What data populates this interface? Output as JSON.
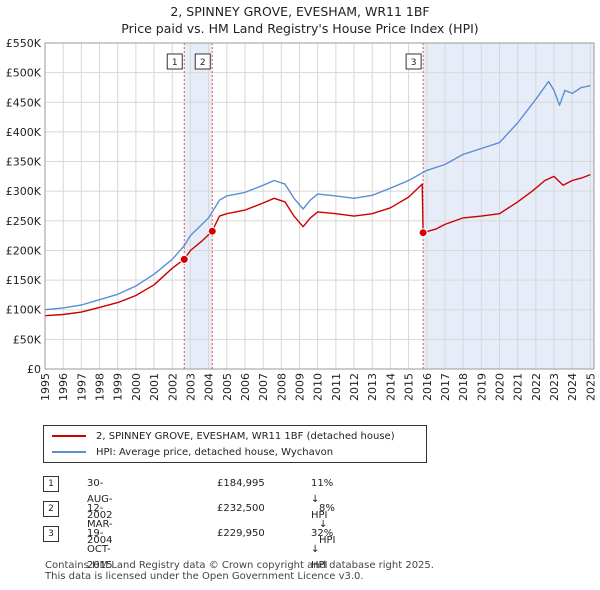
{
  "title": {
    "line1": "2, SPINNEY GROVE, EVESHAM, WR11 1BF",
    "line2": "Price paid vs. HM Land Registry's House Price Index (HPI)"
  },
  "chart_data": {
    "type": "line",
    "x_axis": {
      "range": [
        1995.0,
        2025.2
      ],
      "tick_labels": [
        "1995",
        "1996",
        "1997",
        "1998",
        "1999",
        "2000",
        "2001",
        "2002",
        "2003",
        "2004",
        "2005",
        "2006",
        "2007",
        "2008",
        "2009",
        "2010",
        "2011",
        "2012",
        "2013",
        "2014",
        "2015",
        "2016",
        "2017",
        "2018",
        "2019",
        "2020",
        "2021",
        "2022",
        "2023",
        "2024",
        "2025"
      ]
    },
    "y_axis": {
      "range": [
        0,
        550000
      ],
      "tick_labels": [
        "£0",
        "£50K",
        "£100K",
        "£150K",
        "£200K",
        "£250K",
        "£300K",
        "£350K",
        "£400K",
        "£450K",
        "£500K",
        "£550K"
      ]
    },
    "grid": true,
    "series": [
      {
        "name": "2, SPINNEY GROVE, EVESHAM, WR11 1BF (detached house)",
        "color": "#cc0000",
        "points": [
          [
            1995.0,
            90000
          ],
          [
            1996.0,
            92000
          ],
          [
            1997.0,
            96000
          ],
          [
            1998.0,
            104000
          ],
          [
            1999.0,
            112000
          ],
          [
            2000.0,
            124000
          ],
          [
            2001.0,
            142000
          ],
          [
            2002.0,
            170000
          ],
          [
            2002.66,
            184995
          ],
          [
            2003.0,
            200000
          ],
          [
            2003.6,
            215000
          ],
          [
            2004.2,
            232500
          ],
          [
            2004.6,
            258000
          ],
          [
            2005.0,
            262000
          ],
          [
            2006.0,
            268000
          ],
          [
            2007.0,
            280000
          ],
          [
            2007.6,
            288000
          ],
          [
            2008.2,
            282000
          ],
          [
            2008.7,
            258000
          ],
          [
            2009.2,
            240000
          ],
          [
            2009.6,
            255000
          ],
          [
            2010.0,
            265000
          ],
          [
            2011.0,
            262000
          ],
          [
            2012.0,
            258000
          ],
          [
            2013.0,
            262000
          ],
          [
            2014.0,
            272000
          ],
          [
            2015.0,
            290000
          ],
          [
            2015.75,
            312000
          ],
          [
            2015.8,
            229950
          ],
          [
            2016.5,
            236000
          ],
          [
            2017.0,
            244000
          ],
          [
            2018.0,
            255000
          ],
          [
            2019.0,
            258000
          ],
          [
            2020.0,
            262000
          ],
          [
            2021.0,
            282000
          ],
          [
            2021.8,
            300000
          ],
          [
            2022.5,
            318000
          ],
          [
            2023.0,
            325000
          ],
          [
            2023.5,
            310000
          ],
          [
            2024.0,
            318000
          ],
          [
            2024.5,
            322000
          ],
          [
            2025.0,
            328000
          ]
        ]
      },
      {
        "name": "HPI: Average price, detached house, Wychavon",
        "color": "#5b8fd4",
        "points": [
          [
            1995.0,
            100000
          ],
          [
            1996.0,
            103000
          ],
          [
            1997.0,
            108000
          ],
          [
            1998.0,
            117000
          ],
          [
            1999.0,
            126000
          ],
          [
            2000.0,
            140000
          ],
          [
            2001.0,
            160000
          ],
          [
            2002.0,
            185000
          ],
          [
            2002.66,
            208000
          ],
          [
            2003.0,
            225000
          ],
          [
            2003.5,
            240000
          ],
          [
            2004.0,
            255000
          ],
          [
            2004.6,
            285000
          ],
          [
            2005.0,
            292000
          ],
          [
            2006.0,
            298000
          ],
          [
            2007.0,
            310000
          ],
          [
            2007.6,
            318000
          ],
          [
            2008.2,
            312000
          ],
          [
            2008.7,
            288000
          ],
          [
            2009.2,
            270000
          ],
          [
            2009.6,
            285000
          ],
          [
            2010.0,
            295000
          ],
          [
            2011.0,
            292000
          ],
          [
            2012.0,
            288000
          ],
          [
            2013.0,
            293000
          ],
          [
            2014.0,
            305000
          ],
          [
            2015.0,
            318000
          ],
          [
            2016.0,
            335000
          ],
          [
            2017.0,
            345000
          ],
          [
            2018.0,
            362000
          ],
          [
            2019.0,
            372000
          ],
          [
            2020.0,
            382000
          ],
          [
            2021.0,
            415000
          ],
          [
            2022.0,
            455000
          ],
          [
            2022.7,
            485000
          ],
          [
            2023.0,
            470000
          ],
          [
            2023.3,
            445000
          ],
          [
            2023.6,
            470000
          ],
          [
            2024.0,
            465000
          ],
          [
            2024.5,
            475000
          ],
          [
            2025.0,
            478000
          ]
        ]
      }
    ],
    "sales": [
      {
        "num": "1",
        "x": 2002.66,
        "y": 184995
      },
      {
        "num": "2",
        "x": 2004.2,
        "y": 232500
      },
      {
        "num": "3",
        "x": 2015.8,
        "y": 229950
      }
    ],
    "shaded_ranges": [
      [
        2002.66,
        2004.2
      ],
      [
        2015.8,
        2025.2
      ]
    ]
  },
  "legend": {
    "property": "2, SPINNEY GROVE, EVESHAM, WR11 1BF (detached house)",
    "hpi": "HPI: Average price, detached house, Wychavon"
  },
  "sales_table": [
    {
      "num": "1",
      "date": "30-AUG-2002",
      "price": "£184,995",
      "hpi": "11% ↓ HPI"
    },
    {
      "num": "2",
      "date": "12-MAR-2004",
      "price": "£232,500",
      "hpi": "8% ↓ HPI"
    },
    {
      "num": "3",
      "date": "19-OCT-2015",
      "price": "£229,950",
      "hpi": "32% ↓ HPI"
    }
  ],
  "footer": {
    "line1": "Contains HM Land Registry data © Crown copyright and database right 2025.",
    "line2": "This data is licensed under the Open Government Licence v3.0."
  }
}
